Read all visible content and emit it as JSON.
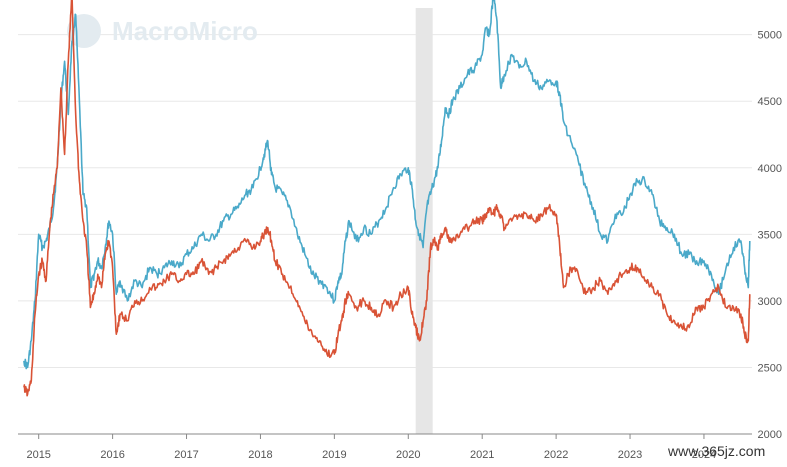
{
  "watermark": {
    "brand": "MacroMicro",
    "site": "www.365jz.com"
  },
  "colors": {
    "teal": "#4aa9c9",
    "orange": "#d95336",
    "shade": "#e6e6e6",
    "grid": "#e8e8e8",
    "axis": "#888888"
  },
  "chart_data": {
    "type": "line",
    "title": "",
    "xlabel": "",
    "ylabel": "",
    "x_ticks": [
      "2015",
      "2016",
      "2017",
      "2018",
      "2019",
      "2020",
      "2021",
      "2022",
      "2023",
      "2024"
    ],
    "left_axis": {
      "ticks": [
        "",
        "",
        "",
        "",
        "",
        ""
      ]
    },
    "right_axis": {
      "ticks": [
        "2000",
        "2500",
        "3000",
        "3500",
        "4000",
        "4500",
        "5000"
      ],
      "ylim": [
        2000,
        5200
      ]
    },
    "shaded_period": {
      "from": 2020.1,
      "to": 2020.33
    },
    "series": [
      {
        "axis": "right",
        "color": "#4aa9c9",
        "x": [
          2014.8,
          2014.85,
          2014.9,
          2014.95,
          2015.0,
          2015.05,
          2015.1,
          2015.15,
          2015.2,
          2015.25,
          2015.3,
          2015.35,
          2015.4,
          2015.45,
          2015.5,
          2015.55,
          2015.6,
          2015.65,
          2015.7,
          2015.75,
          2015.8,
          2015.85,
          2015.9,
          2015.95,
          2016.0,
          2016.05,
          2016.1,
          2016.2,
          2016.3,
          2016.4,
          2016.5,
          2016.6,
          2016.7,
          2016.8,
          2016.9,
          2017.0,
          2017.1,
          2017.2,
          2017.3,
          2017.4,
          2017.5,
          2017.6,
          2017.7,
          2017.8,
          2017.9,
          2018.0,
          2018.05,
          2018.1,
          2018.15,
          2018.2,
          2018.3,
          2018.4,
          2018.5,
          2018.6,
          2018.7,
          2018.8,
          2018.9,
          2019.0,
          2019.05,
          2019.1,
          2019.15,
          2019.2,
          2019.3,
          2019.4,
          2019.5,
          2019.6,
          2019.7,
          2019.8,
          2019.9,
          2020.0,
          2020.05,
          2020.1,
          2020.15,
          2020.2,
          2020.25,
          2020.3,
          2020.35,
          2020.4,
          2020.45,
          2020.5,
          2020.55,
          2020.6,
          2020.7,
          2020.8,
          2020.9,
          2021.0,
          2021.05,
          2021.1,
          2021.15,
          2021.2,
          2021.25,
          2021.3,
          2021.4,
          2021.5,
          2021.6,
          2021.7,
          2021.8,
          2021.9,
          2022.0,
          2022.05,
          2022.1,
          2022.2,
          2022.3,
          2022.4,
          2022.5,
          2022.6,
          2022.7,
          2022.8,
          2022.9,
          2023.0,
          2023.1,
          2023.2,
          2023.3,
          2023.4,
          2023.5,
          2023.6,
          2023.7,
          2023.8,
          2023.9,
          2024.0,
          2024.1,
          2024.2,
          2024.3,
          2024.4,
          2024.5,
          2024.55,
          2024.6,
          2024.62
        ],
        "y": [
          2550,
          2500,
          2700,
          3000,
          3500,
          3400,
          3450,
          3550,
          3700,
          4000,
          4500,
          4800,
          4400,
          4950,
          5150,
          4500,
          3800,
          3700,
          3100,
          3200,
          3300,
          3250,
          3400,
          3600,
          3500,
          3050,
          3150,
          3000,
          3150,
          3100,
          3250,
          3200,
          3250,
          3300,
          3250,
          3350,
          3400,
          3500,
          3450,
          3500,
          3600,
          3650,
          3700,
          3800,
          3850,
          4000,
          4100,
          4200,
          3950,
          3850,
          3800,
          3700,
          3500,
          3350,
          3200,
          3150,
          3100,
          3000,
          3150,
          3200,
          3450,
          3600,
          3450,
          3550,
          3500,
          3600,
          3700,
          3850,
          3950,
          4000,
          3850,
          3600,
          3500,
          3400,
          3700,
          3800,
          3900,
          4000,
          4200,
          4450,
          4400,
          4500,
          4600,
          4700,
          4750,
          4850,
          5050,
          5000,
          5300,
          5100,
          4600,
          4700,
          4850,
          4750,
          4800,
          4650,
          4600,
          4650,
          4650,
          4550,
          4350,
          4200,
          4050,
          3850,
          3700,
          3500,
          3450,
          3650,
          3650,
          3800,
          3900,
          3900,
          3800,
          3600,
          3550,
          3500,
          3350,
          3350,
          3300,
          3300,
          3200,
          3050,
          3250,
          3400,
          3450,
          3250,
          3100,
          3450
        ]
      },
      {
        "axis": "right",
        "color": "#d95336",
        "x": [
          2014.8,
          2014.85,
          2014.9,
          2014.95,
          2015.0,
          2015.05,
          2015.1,
          2015.15,
          2015.2,
          2015.25,
          2015.3,
          2015.35,
          2015.4,
          2015.45,
          2015.5,
          2015.55,
          2015.6,
          2015.65,
          2015.7,
          2015.75,
          2015.8,
          2015.85,
          2015.9,
          2015.95,
          2016.0,
          2016.05,
          2016.1,
          2016.2,
          2016.3,
          2016.4,
          2016.5,
          2016.6,
          2016.7,
          2016.8,
          2016.9,
          2017.0,
          2017.1,
          2017.2,
          2017.3,
          2017.4,
          2017.5,
          2017.6,
          2017.7,
          2017.8,
          2017.9,
          2018.0,
          2018.05,
          2018.1,
          2018.15,
          2018.2,
          2018.3,
          2018.4,
          2018.5,
          2018.6,
          2018.7,
          2018.8,
          2018.9,
          2019.0,
          2019.05,
          2019.1,
          2019.15,
          2019.2,
          2019.3,
          2019.4,
          2019.5,
          2019.6,
          2019.7,
          2019.8,
          2019.9,
          2020.0,
          2020.05,
          2020.1,
          2020.15,
          2020.2,
          2020.25,
          2020.3,
          2020.35,
          2020.4,
          2020.45,
          2020.5,
          2020.55,
          2020.6,
          2020.7,
          2020.8,
          2020.9,
          2021.0,
          2021.05,
          2021.1,
          2021.15,
          2021.2,
          2021.25,
          2021.3,
          2021.4,
          2021.5,
          2021.6,
          2021.7,
          2021.8,
          2021.9,
          2022.0,
          2022.05,
          2022.1,
          2022.2,
          2022.3,
          2022.4,
          2022.5,
          2022.6,
          2022.7,
          2022.8,
          2022.9,
          2023.0,
          2023.1,
          2023.2,
          2023.3,
          2023.4,
          2023.5,
          2023.6,
          2023.7,
          2023.8,
          2023.9,
          2024.0,
          2024.1,
          2024.2,
          2024.3,
          2024.4,
          2024.5,
          2024.55,
          2024.6,
          2024.62
        ],
        "y": [
          2350,
          2300,
          2400,
          2900,
          3200,
          3300,
          3150,
          3550,
          3800,
          4000,
          4600,
          4100,
          4800,
          5300,
          4400,
          3900,
          3600,
          3400,
          2950,
          3050,
          3200,
          3100,
          3350,
          3450,
          3250,
          2750,
          2900,
          2850,
          3000,
          3000,
          3100,
          3100,
          3150,
          3200,
          3150,
          3200,
          3200,
          3300,
          3200,
          3250,
          3300,
          3350,
          3400,
          3450,
          3400,
          3450,
          3500,
          3550,
          3450,
          3300,
          3200,
          3100,
          3000,
          2850,
          2750,
          2700,
          2600,
          2600,
          2750,
          2850,
          3000,
          3050,
          2950,
          3000,
          2950,
          2900,
          3000,
          2950,
          3050,
          3100,
          2900,
          2800,
          2700,
          2850,
          3000,
          3400,
          3450,
          3400,
          3500,
          3550,
          3450,
          3450,
          3500,
          3550,
          3600,
          3600,
          3650,
          3700,
          3650,
          3700,
          3650,
          3550,
          3600,
          3650,
          3650,
          3600,
          3650,
          3700,
          3650,
          3400,
          3100,
          3250,
          3200,
          3050,
          3100,
          3150,
          3050,
          3150,
          3200,
          3250,
          3250,
          3150,
          3100,
          3050,
          2900,
          2850,
          2800,
          2800,
          2950,
          2950,
          3050,
          3100,
          2950,
          2950,
          2900,
          2750,
          2700,
          3050
        ]
      }
    ]
  }
}
